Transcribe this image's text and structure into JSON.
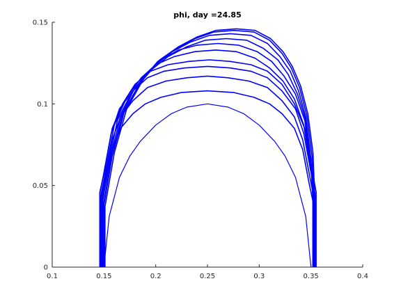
{
  "chart_data": {
    "type": "line",
    "title": "phi, day =24.85",
    "xlabel": "",
    "ylabel": "",
    "xlim": [
      0.1,
      0.4
    ],
    "ylim": [
      0,
      0.15
    ],
    "xticks": [
      "0.1",
      "0.15",
      "0.2",
      "0.25",
      "0.3",
      "0.35",
      "0.4"
    ],
    "yticks": [
      "0",
      "0.05",
      "0.1",
      "0.15"
    ],
    "grid": false,
    "line_color": "#0000ff",
    "axis_color": "#262626",
    "series": [
      {
        "values": [
          [
            0.15,
            0.0
          ],
          [
            0.155,
            0.031
          ],
          [
            0.165,
            0.055
          ],
          [
            0.175,
            0.068
          ],
          [
            0.185,
            0.077
          ],
          [
            0.2,
            0.087
          ],
          [
            0.215,
            0.094
          ],
          [
            0.23,
            0.098
          ],
          [
            0.25,
            0.1
          ],
          [
            0.27,
            0.098
          ],
          [
            0.285,
            0.094
          ],
          [
            0.3,
            0.087
          ],
          [
            0.315,
            0.077
          ],
          [
            0.325,
            0.068
          ],
          [
            0.335,
            0.055
          ],
          [
            0.345,
            0.031
          ],
          [
            0.35,
            0.0
          ]
        ]
      },
      {
        "values": [
          [
            0.148,
            0.0
          ],
          [
            0.148,
            0.04
          ],
          [
            0.152,
            0.052
          ],
          [
            0.158,
            0.072
          ],
          [
            0.166,
            0.085
          ],
          [
            0.178,
            0.094
          ],
          [
            0.19,
            0.1
          ],
          [
            0.205,
            0.104
          ],
          [
            0.225,
            0.107
          ],
          [
            0.25,
            0.108
          ],
          [
            0.275,
            0.107
          ],
          [
            0.295,
            0.104
          ],
          [
            0.31,
            0.1
          ],
          [
            0.322,
            0.094
          ],
          [
            0.334,
            0.085
          ],
          [
            0.342,
            0.072
          ],
          [
            0.348,
            0.052
          ],
          [
            0.352,
            0.04
          ],
          [
            0.352,
            0.0
          ]
        ]
      },
      {
        "values": [
          [
            0.147,
            0.0
          ],
          [
            0.147,
            0.042
          ],
          [
            0.151,
            0.055
          ],
          [
            0.158,
            0.078
          ],
          [
            0.166,
            0.092
          ],
          [
            0.178,
            0.102
          ],
          [
            0.192,
            0.11
          ],
          [
            0.21,
            0.114
          ],
          [
            0.23,
            0.116
          ],
          [
            0.25,
            0.117
          ],
          [
            0.27,
            0.116
          ],
          [
            0.29,
            0.114
          ],
          [
            0.308,
            0.11
          ],
          [
            0.322,
            0.102
          ],
          [
            0.334,
            0.092
          ],
          [
            0.342,
            0.078
          ],
          [
            0.349,
            0.055
          ],
          [
            0.353,
            0.042
          ],
          [
            0.353,
            0.0
          ]
        ]
      },
      {
        "values": [
          [
            0.146,
            0.0
          ],
          [
            0.146,
            0.045
          ],
          [
            0.15,
            0.058
          ],
          [
            0.157,
            0.082
          ],
          [
            0.165,
            0.097
          ],
          [
            0.178,
            0.108
          ],
          [
            0.192,
            0.116
          ],
          [
            0.208,
            0.12
          ],
          [
            0.228,
            0.122
          ],
          [
            0.25,
            0.123
          ],
          [
            0.272,
            0.122
          ],
          [
            0.292,
            0.12
          ],
          [
            0.308,
            0.116
          ],
          [
            0.322,
            0.108
          ],
          [
            0.335,
            0.097
          ],
          [
            0.343,
            0.082
          ],
          [
            0.35,
            0.058
          ],
          [
            0.354,
            0.045
          ],
          [
            0.354,
            0.0
          ]
        ]
      },
      {
        "values": [
          [
            0.146,
            0.0
          ],
          [
            0.146,
            0.046
          ],
          [
            0.151,
            0.06
          ],
          [
            0.158,
            0.085
          ],
          [
            0.168,
            0.1
          ],
          [
            0.18,
            0.112
          ],
          [
            0.195,
            0.12
          ],
          [
            0.212,
            0.124
          ],
          [
            0.232,
            0.126
          ],
          [
            0.252,
            0.127
          ],
          [
            0.272,
            0.126
          ],
          [
            0.292,
            0.124
          ],
          [
            0.308,
            0.12
          ],
          [
            0.322,
            0.112
          ],
          [
            0.334,
            0.1
          ],
          [
            0.344,
            0.085
          ],
          [
            0.351,
            0.06
          ],
          [
            0.355,
            0.046
          ],
          [
            0.355,
            0.0
          ]
        ]
      },
      {
        "values": [
          [
            0.147,
            0.0
          ],
          [
            0.147,
            0.044
          ],
          [
            0.152,
            0.06
          ],
          [
            0.16,
            0.087
          ],
          [
            0.172,
            0.104
          ],
          [
            0.186,
            0.116
          ],
          [
            0.2,
            0.124
          ],
          [
            0.218,
            0.129
          ],
          [
            0.238,
            0.132
          ],
          [
            0.258,
            0.133
          ],
          [
            0.278,
            0.132
          ],
          [
            0.296,
            0.128
          ],
          [
            0.31,
            0.122
          ],
          [
            0.323,
            0.114
          ],
          [
            0.334,
            0.103
          ],
          [
            0.343,
            0.087
          ],
          [
            0.35,
            0.06
          ],
          [
            0.353,
            0.044
          ],
          [
            0.353,
            0.0
          ]
        ]
      },
      {
        "values": [
          [
            0.148,
            0.0
          ],
          [
            0.148,
            0.043
          ],
          [
            0.154,
            0.062
          ],
          [
            0.163,
            0.09
          ],
          [
            0.176,
            0.106
          ],
          [
            0.19,
            0.118
          ],
          [
            0.205,
            0.127
          ],
          [
            0.222,
            0.133
          ],
          [
            0.24,
            0.136
          ],
          [
            0.26,
            0.137
          ],
          [
            0.28,
            0.136
          ],
          [
            0.298,
            0.132
          ],
          [
            0.312,
            0.126
          ],
          [
            0.324,
            0.117
          ],
          [
            0.335,
            0.106
          ],
          [
            0.344,
            0.09
          ],
          [
            0.35,
            0.062
          ],
          [
            0.352,
            0.043
          ],
          [
            0.352,
            0.0
          ]
        ]
      },
      {
        "values": [
          [
            0.149,
            0.0
          ],
          [
            0.149,
            0.041
          ],
          [
            0.155,
            0.064
          ],
          [
            0.166,
            0.092
          ],
          [
            0.18,
            0.11
          ],
          [
            0.196,
            0.121
          ],
          [
            0.212,
            0.129
          ],
          [
            0.23,
            0.135
          ],
          [
            0.248,
            0.139
          ],
          [
            0.268,
            0.14
          ],
          [
            0.288,
            0.139
          ],
          [
            0.304,
            0.134
          ],
          [
            0.318,
            0.127
          ],
          [
            0.328,
            0.118
          ],
          [
            0.337,
            0.106
          ],
          [
            0.345,
            0.09
          ],
          [
            0.35,
            0.064
          ],
          [
            0.352,
            0.041
          ],
          [
            0.352,
            0.0
          ]
        ]
      },
      {
        "values": [
          [
            0.15,
            0.0
          ],
          [
            0.15,
            0.04
          ],
          [
            0.157,
            0.066
          ],
          [
            0.168,
            0.094
          ],
          [
            0.184,
            0.112
          ],
          [
            0.2,
            0.124
          ],
          [
            0.216,
            0.132
          ],
          [
            0.234,
            0.138
          ],
          [
            0.252,
            0.142
          ],
          [
            0.272,
            0.143
          ],
          [
            0.292,
            0.142
          ],
          [
            0.308,
            0.137
          ],
          [
            0.32,
            0.129
          ],
          [
            0.33,
            0.12
          ],
          [
            0.338,
            0.108
          ],
          [
            0.345,
            0.092
          ],
          [
            0.35,
            0.066
          ],
          [
            0.352,
            0.04
          ],
          [
            0.352,
            0.0
          ]
        ]
      },
      {
        "values": [
          [
            0.15,
            0.0
          ],
          [
            0.15,
            0.038
          ],
          [
            0.158,
            0.068
          ],
          [
            0.17,
            0.096
          ],
          [
            0.186,
            0.114
          ],
          [
            0.202,
            0.126
          ],
          [
            0.22,
            0.134
          ],
          [
            0.238,
            0.14
          ],
          [
            0.256,
            0.144
          ],
          [
            0.276,
            0.145
          ],
          [
            0.295,
            0.144
          ],
          [
            0.31,
            0.139
          ],
          [
            0.322,
            0.131
          ],
          [
            0.331,
            0.122
          ],
          [
            0.339,
            0.11
          ],
          [
            0.346,
            0.093
          ],
          [
            0.351,
            0.068
          ],
          [
            0.353,
            0.038
          ],
          [
            0.353,
            0.0
          ]
        ]
      },
      {
        "values": [
          [
            0.151,
            0.0
          ],
          [
            0.151,
            0.037
          ],
          [
            0.16,
            0.07
          ],
          [
            0.172,
            0.097
          ],
          [
            0.188,
            0.115
          ],
          [
            0.204,
            0.127
          ],
          [
            0.222,
            0.135
          ],
          [
            0.24,
            0.141
          ],
          [
            0.258,
            0.145
          ],
          [
            0.278,
            0.146
          ],
          [
            0.296,
            0.145
          ],
          [
            0.311,
            0.14
          ],
          [
            0.323,
            0.132
          ],
          [
            0.332,
            0.123
          ],
          [
            0.34,
            0.111
          ],
          [
            0.347,
            0.094
          ],
          [
            0.352,
            0.07
          ],
          [
            0.354,
            0.037
          ],
          [
            0.354,
            0.0
          ]
        ]
      }
    ]
  }
}
